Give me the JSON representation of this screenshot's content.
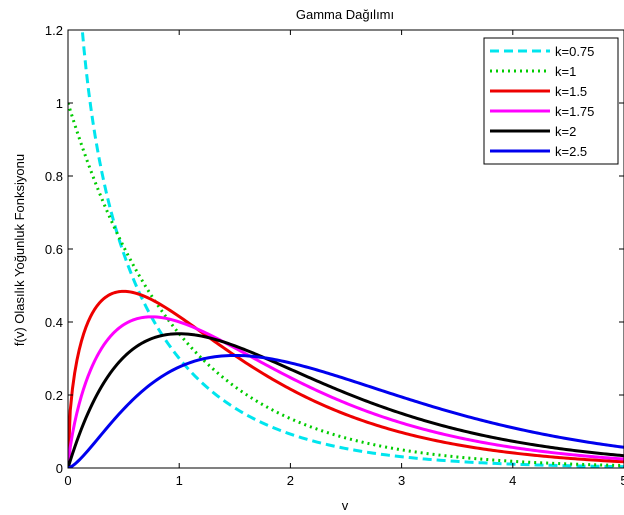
{
  "chart_data": {
    "type": "line",
    "title": "Gamma Dağılımı",
    "xlabel": "v",
    "ylabel": "f(v) Olasılık Yoğunluk Fonksiyonu",
    "xlim": [
      0,
      5
    ],
    "ylim": [
      0,
      1.2
    ],
    "xticks": [
      0,
      1,
      2,
      3,
      4,
      5
    ],
    "yticks": [
      0,
      0.2,
      0.4,
      0.6,
      0.8,
      1,
      1.2
    ],
    "grid": false,
    "legend_position": "top-right",
    "theta": 1,
    "sample_step": 0.02,
    "series": [
      {
        "name": "k=0.75",
        "shape": 0.75,
        "color": "#00e5ee",
        "dash": "dashed"
      },
      {
        "name": "k=1",
        "shape": 1,
        "color": "#00cc00",
        "dash": "dotted"
      },
      {
        "name": "k=1.5",
        "shape": 1.5,
        "color": "#ee0000",
        "dash": "solid"
      },
      {
        "name": "k=1.75",
        "shape": 1.75,
        "color": "#ff00ff",
        "dash": "solid"
      },
      {
        "name": "k=2",
        "shape": 2,
        "color": "#000000",
        "dash": "solid"
      },
      {
        "name": "k=2.5",
        "shape": 2.5,
        "color": "#0000ee",
        "dash": "solid"
      }
    ]
  }
}
